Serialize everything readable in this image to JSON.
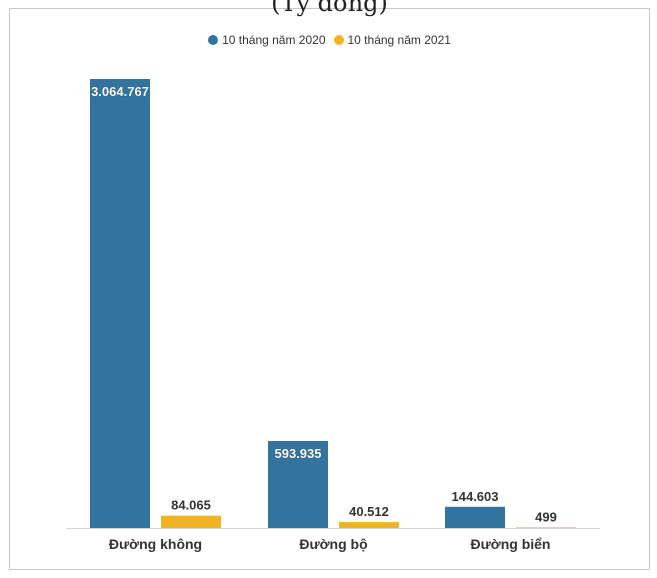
{
  "header": {
    "cut_title": "(Tỷ đồng)"
  },
  "colors": {
    "series_2020": "#33739f",
    "series_2021": "#f0b323"
  },
  "chart_data": {
    "type": "bar",
    "categories": [
      "Đường không",
      "Đường bộ",
      "Đường biển"
    ],
    "series": [
      {
        "name": "10 tháng năm 2020",
        "values": [
          3064767,
          593935,
          144603
        ],
        "labels": [
          "3.064.767",
          "593.935",
          "144.603"
        ]
      },
      {
        "name": "10 tháng năm 2021",
        "values": [
          84065,
          40512,
          499
        ],
        "labels": [
          "84.065",
          "40.512",
          "499"
        ]
      }
    ],
    "ylim": [
      0,
      3064767
    ],
    "legend": "top-center",
    "grid": false
  }
}
